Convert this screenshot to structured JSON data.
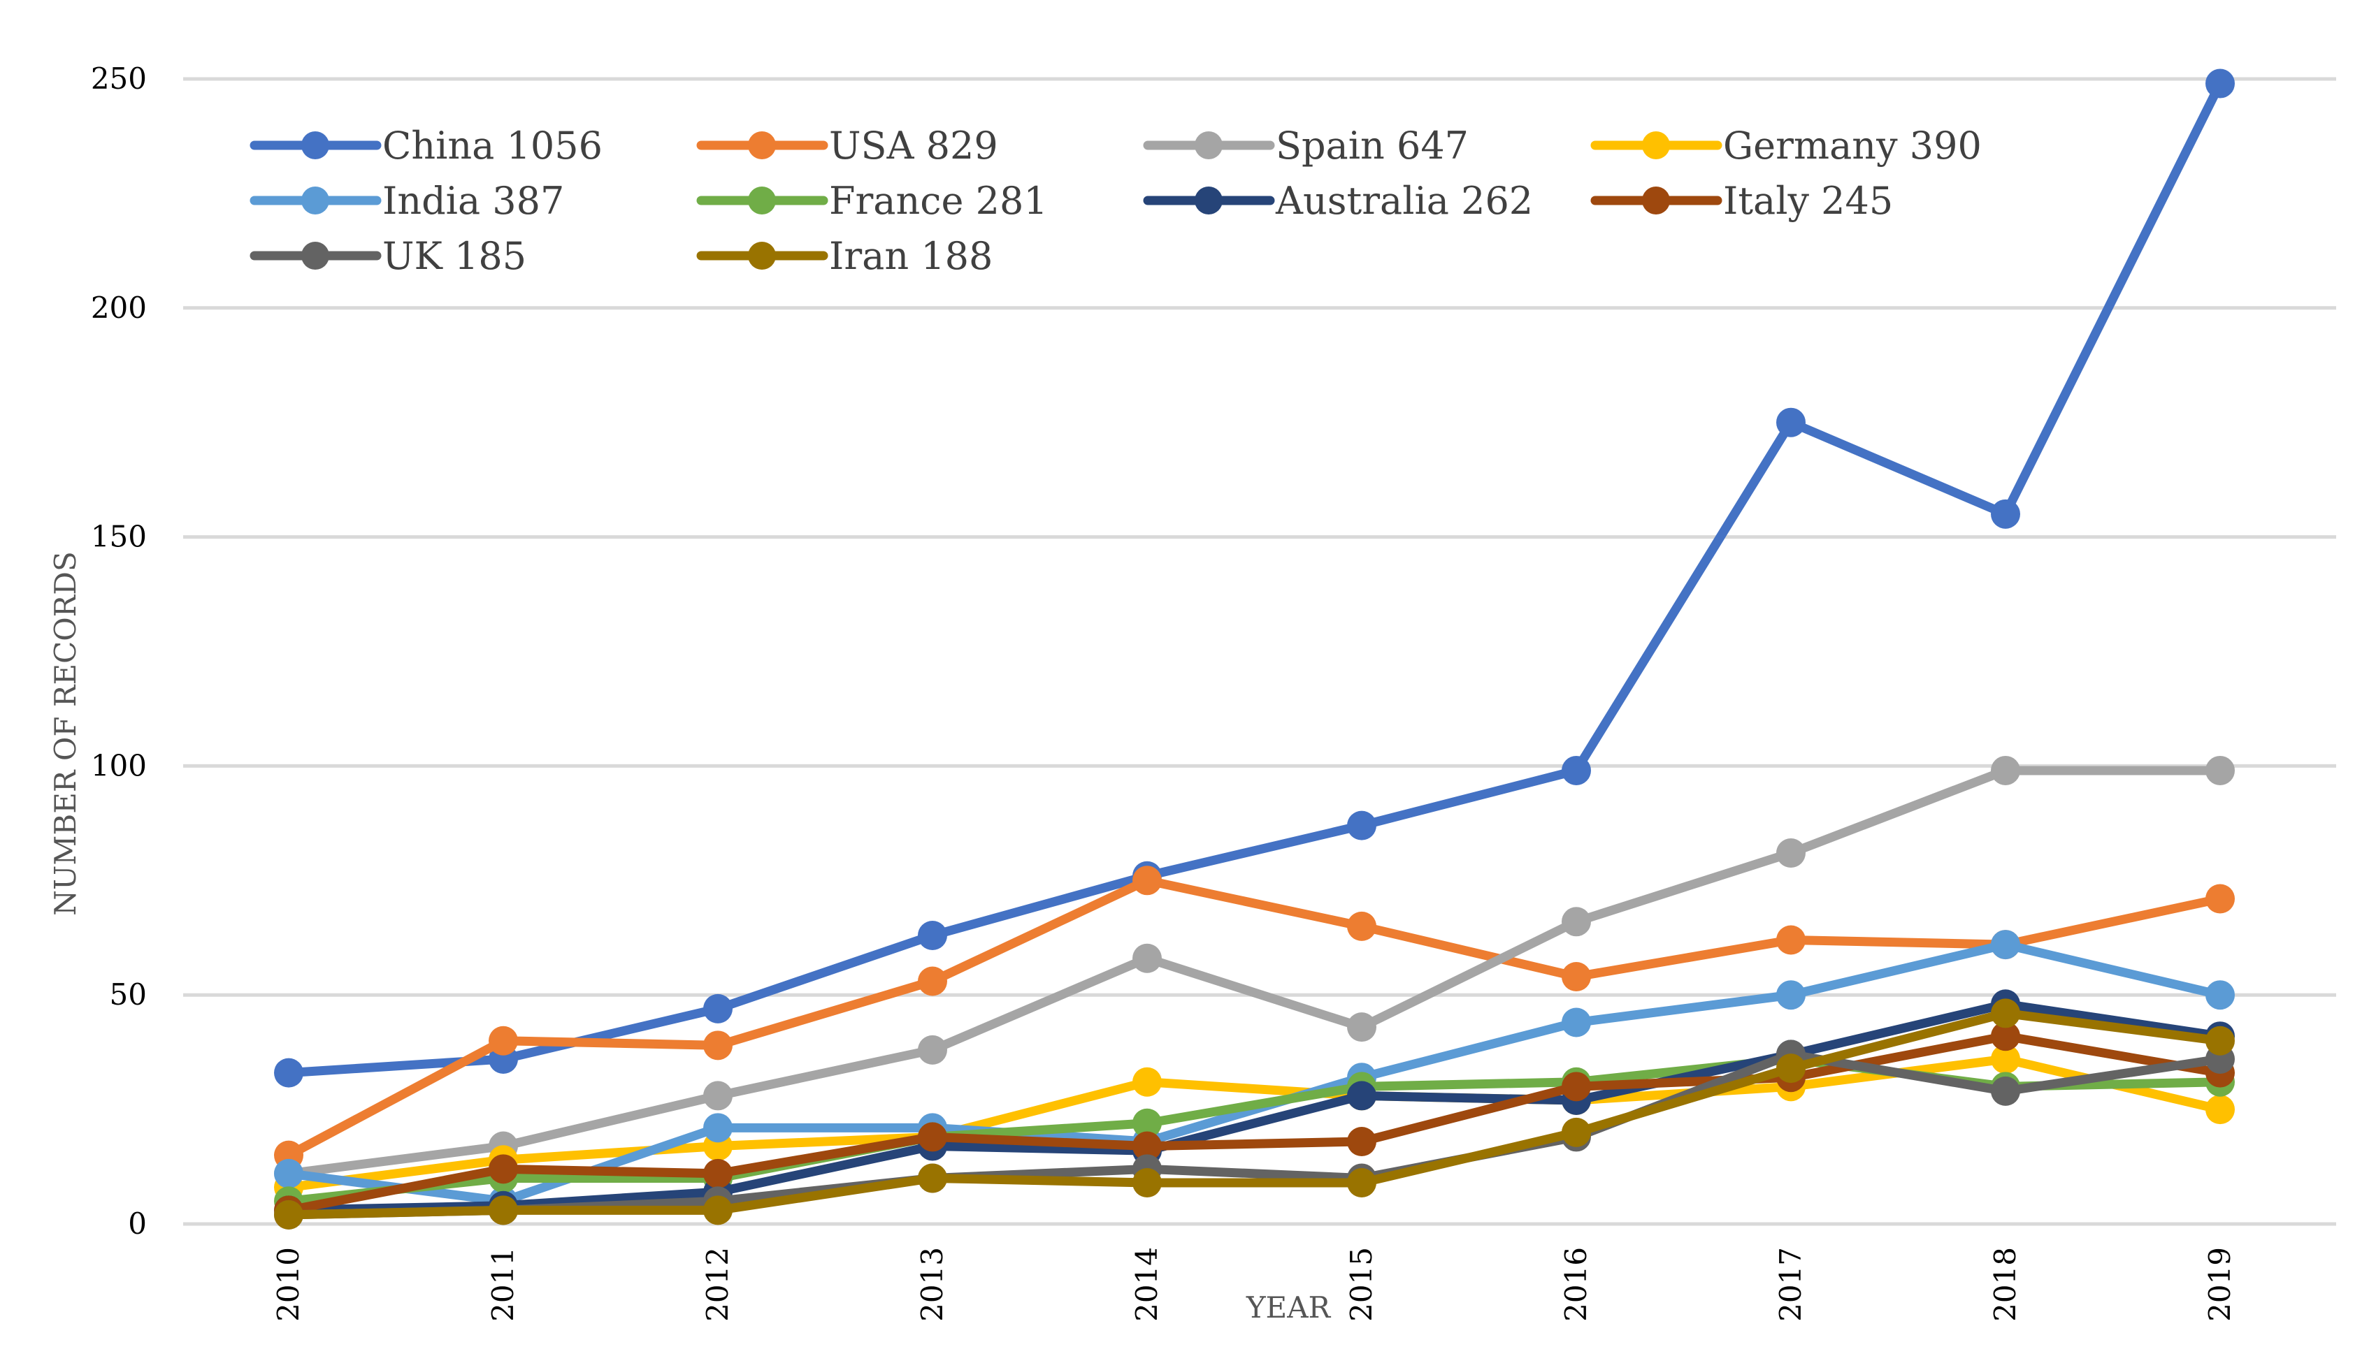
{
  "chart_data": {
    "type": "line",
    "title": "",
    "xlabel": "YEAR",
    "ylabel": "NUMBER OF RECORDS",
    "x": [
      "2010",
      "2011",
      "2012",
      "2013",
      "2014",
      "2015",
      "2016",
      "2017",
      "2018",
      "2019"
    ],
    "ylim": [
      0,
      250
    ],
    "yticks": [
      0,
      50,
      100,
      150,
      200,
      250
    ],
    "grid": true,
    "legend_position": "top-left",
    "series": [
      {
        "name": "China 1056",
        "color": "#4472C4",
        "values": [
          33,
          36,
          47,
          63,
          76,
          87,
          99,
          175,
          155,
          249
        ]
      },
      {
        "name": "USA 829",
        "color": "#ED7D31",
        "values": [
          15,
          40,
          39,
          53,
          75,
          65,
          54,
          62,
          61,
          71
        ]
      },
      {
        "name": "Spain 647",
        "color": "#A5A5A5",
        "values": [
          11,
          17,
          28,
          38,
          58,
          43,
          66,
          81,
          99,
          99
        ]
      },
      {
        "name": "Germany 390",
        "color": "#FFC000",
        "values": [
          8,
          14,
          17,
          19,
          31,
          28,
          27,
          30,
          36,
          25
        ]
      },
      {
        "name": "India 387",
        "color": "#5B9BD5",
        "values": [
          11,
          5,
          21,
          21,
          18,
          32,
          44,
          50,
          61,
          50
        ]
      },
      {
        "name": "France 281",
        "color": "#70AD47",
        "values": [
          5,
          10,
          10,
          19,
          22,
          30,
          31,
          36,
          30,
          31
        ]
      },
      {
        "name": "Australia 262",
        "color": "#264478",
        "values": [
          3,
          4,
          7,
          17,
          16,
          28,
          27,
          37,
          48,
          41
        ]
      },
      {
        "name": "Italy 245",
        "color": "#9E480E",
        "values": [
          3,
          12,
          11,
          19,
          17,
          18,
          30,
          32,
          41,
          33
        ]
      },
      {
        "name": "UK 185",
        "color": "#636363",
        "values": [
          2,
          3,
          5,
          10,
          12,
          10,
          19,
          37,
          29,
          36
        ]
      },
      {
        "name": "Iran 188",
        "color": "#997300",
        "values": [
          2,
          3,
          3,
          10,
          9,
          9,
          20,
          34,
          46,
          40
        ]
      }
    ]
  }
}
